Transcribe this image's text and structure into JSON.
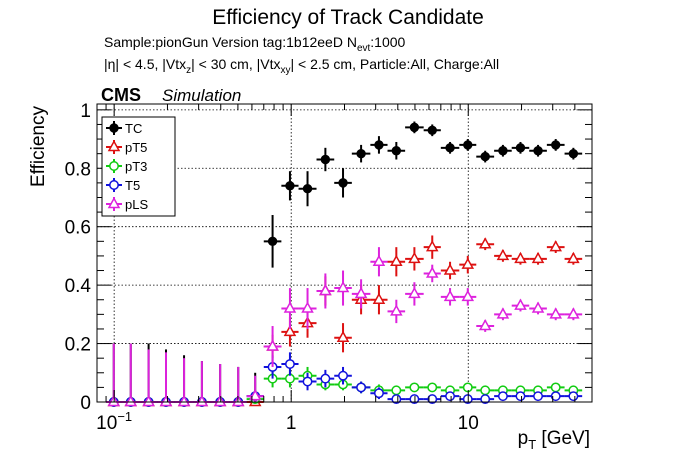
{
  "chart_data": {
    "type": "scatter",
    "title": "Efficiency of Track Candidate",
    "subtitle_lines": [
      {
        "parts": [
          "Sample:pionGun   Version tag:1b12eeD  N",
          "evt",
          ":1000"
        ]
      },
      {
        "parts": [
          "|η| < 4.5, |Vtx",
          "z",
          "| < 30 cm, |Vtx",
          "xy",
          "| < 2.5 cm, Particle:All, Charge:All"
        ]
      }
    ],
    "cms_label": "CMS",
    "simulation_label": "Simulation",
    "xlabel": {
      "main": "p",
      "sub": "T",
      "rest": " [GeV]"
    },
    "ylabel": "Efficiency",
    "x_scale": "log",
    "xlim": [
      0.08,
      50
    ],
    "ylim": [
      0,
      1.02
    ],
    "x_ticks": [
      {
        "value": 0.1,
        "base": "10",
        "exp": "−1"
      },
      {
        "value": 1,
        "base": "1",
        "exp": ""
      },
      {
        "value": 10,
        "base": "10",
        "exp": ""
      }
    ],
    "y_ticks": [
      {
        "value": 0,
        "label": "0"
      },
      {
        "value": 0.2,
        "label": "0.2"
      },
      {
        "value": 0.4,
        "label": "0.4"
      },
      {
        "value": 0.6,
        "label": "0.6"
      },
      {
        "value": 0.8,
        "label": "0.8"
      },
      {
        "value": 1,
        "label": "1"
      }
    ],
    "grid": true,
    "legend_position": "top-left",
    "bin_edges": [
      0.09,
      0.11,
      0.14,
      0.175,
      0.22,
      0.28,
      0.35,
      0.45,
      0.56,
      0.7,
      0.88,
      1.1,
      1.39,
      1.75,
      2.2,
      2.8,
      3.5,
      4.4,
      5.6,
      7.0,
      8.9,
      11.1,
      14.0,
      17.6,
      22.1,
      27.8,
      35.0,
      44.0
    ],
    "series": [
      {
        "name": "TC",
        "color": "#000000",
        "marker": "circle-filled",
        "values": [
          0,
          0,
          0,
          0,
          0,
          0,
          0,
          0,
          0.02,
          0.55,
          0.74,
          0.73,
          0.83,
          0.75,
          0.85,
          0.88,
          0.86,
          0.94,
          0.93,
          0.87,
          0.88,
          0.84,
          0.86,
          0.87,
          0.86,
          0.88,
          0.85
        ],
        "err_up": [
          0.2,
          0.2,
          0.2,
          0.18,
          0.16,
          0.14,
          0.13,
          0.12,
          0.08,
          0.09,
          0.05,
          0.06,
          0.04,
          0.05,
          0.03,
          0.03,
          0.03,
          0.02,
          0.02,
          0.02,
          0.02,
          0.02,
          0.02,
          0.02,
          0.02,
          0.02,
          0.02
        ],
        "err_dn": [
          0,
          0,
          0,
          0,
          0,
          0,
          0,
          0,
          0.02,
          0.09,
          0.05,
          0.06,
          0.04,
          0.05,
          0.03,
          0.03,
          0.03,
          0.02,
          0.02,
          0.02,
          0.02,
          0.02,
          0.02,
          0.02,
          0.02,
          0.02,
          0.02
        ]
      },
      {
        "name": "pT5",
        "color": "#dd1111",
        "marker": "triangle-open",
        "values": [
          0,
          0,
          0,
          0,
          0,
          0,
          0,
          0,
          0,
          0.19,
          0.24,
          0.27,
          0.38,
          0.22,
          0.35,
          0.35,
          0.48,
          0.49,
          0.53,
          0.45,
          0.47,
          0.54,
          0.5,
          0.49,
          0.49,
          0.53,
          0.49
        ],
        "err_up": [
          0,
          0,
          0,
          0,
          0,
          0,
          0,
          0,
          0,
          0.04,
          0.05,
          0.05,
          0.05,
          0.05,
          0.05,
          0.05,
          0.05,
          0.04,
          0.04,
          0.03,
          0.03,
          0.02,
          0.02,
          0.02,
          0.02,
          0.02,
          0.02
        ],
        "err_dn": [
          0,
          0,
          0,
          0,
          0,
          0,
          0,
          0,
          0,
          0.04,
          0.05,
          0.05,
          0.05,
          0.05,
          0.05,
          0.05,
          0.05,
          0.04,
          0.04,
          0.03,
          0.03,
          0.02,
          0.02,
          0.02,
          0.02,
          0.02,
          0.02
        ]
      },
      {
        "name": "pT3",
        "color": "#11cc11",
        "marker": "circle-open",
        "values": [
          0,
          0,
          0,
          0,
          0,
          0,
          0,
          0,
          0.01,
          0.08,
          0.08,
          0.09,
          0.06,
          0.06,
          0.05,
          0.04,
          0.04,
          0.05,
          0.05,
          0.04,
          0.05,
          0.04,
          0.04,
          0.04,
          0.04,
          0.05,
          0.04
        ],
        "err_up": [
          0,
          0,
          0,
          0,
          0,
          0,
          0,
          0,
          0.01,
          0.03,
          0.03,
          0.03,
          0.02,
          0.02,
          0.02,
          0.02,
          0.01,
          0.01,
          0.01,
          0.01,
          0.01,
          0.01,
          0.01,
          0.01,
          0.01,
          0.01,
          0.01
        ],
        "err_dn": [
          0,
          0,
          0,
          0,
          0,
          0,
          0,
          0,
          0.01,
          0.03,
          0.03,
          0.03,
          0.02,
          0.02,
          0.02,
          0.02,
          0.01,
          0.01,
          0.01,
          0.01,
          0.01,
          0.01,
          0.01,
          0.01,
          0.01,
          0.01,
          0.01
        ]
      },
      {
        "name": "T5",
        "color": "#1111dd",
        "marker": "circle-open",
        "values": [
          0,
          0,
          0,
          0,
          0,
          0,
          0,
          0,
          0.02,
          0.12,
          0.13,
          0.07,
          0.08,
          0.09,
          0.05,
          0.03,
          0.01,
          0.01,
          0.01,
          0.02,
          0.01,
          0.01,
          0.02,
          0.02,
          0.02,
          0.02,
          0.02
        ],
        "err_up": [
          0,
          0,
          0,
          0,
          0,
          0,
          0,
          0,
          0.02,
          0.04,
          0.04,
          0.03,
          0.03,
          0.03,
          0.02,
          0.02,
          0.01,
          0.01,
          0.01,
          0.01,
          0.01,
          0.01,
          0.01,
          0.01,
          0.01,
          0.01,
          0.01
        ],
        "err_dn": [
          0,
          0,
          0,
          0,
          0,
          0,
          0,
          0,
          0.02,
          0.04,
          0.04,
          0.03,
          0.03,
          0.03,
          0.02,
          0.02,
          0.01,
          0.01,
          0.01,
          0.01,
          0.01,
          0.01,
          0.01,
          0.01,
          0.01,
          0.01,
          0.01
        ]
      },
      {
        "name": "pLS",
        "color": "#dd22dd",
        "marker": "triangle-open",
        "values": [
          0,
          0,
          0,
          0,
          0,
          0,
          0,
          0,
          0.02,
          0.19,
          0.32,
          0.32,
          0.38,
          0.39,
          0.37,
          0.48,
          0.31,
          0.37,
          0.44,
          0.36,
          0.36,
          0.26,
          0.3,
          0.33,
          0.32,
          0.3,
          0.3
        ],
        "err_up": [
          0.2,
          0.2,
          0.18,
          0.17,
          0.15,
          0.14,
          0.13,
          0.12,
          0.07,
          0.07,
          0.07,
          0.07,
          0.06,
          0.06,
          0.05,
          0.05,
          0.04,
          0.04,
          0.03,
          0.03,
          0.03,
          0.02,
          0.02,
          0.02,
          0.02,
          0.02,
          0.02
        ],
        "err_dn": [
          0,
          0,
          0,
          0,
          0,
          0,
          0,
          0,
          0.02,
          0.07,
          0.07,
          0.07,
          0.06,
          0.06,
          0.05,
          0.05,
          0.04,
          0.04,
          0.03,
          0.03,
          0.03,
          0.02,
          0.02,
          0.02,
          0.02,
          0.02,
          0.02
        ]
      }
    ]
  }
}
